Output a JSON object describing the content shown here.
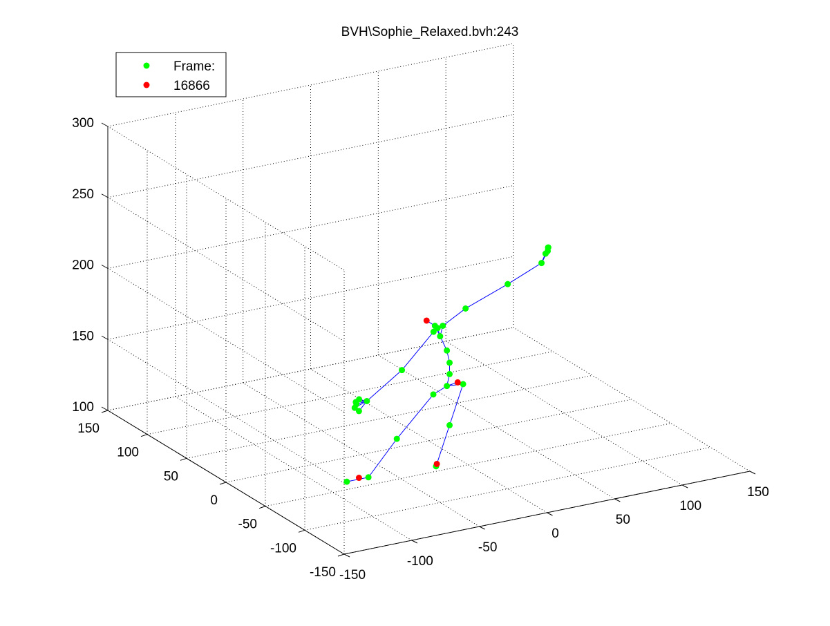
{
  "chart_data": {
    "type": "scatter",
    "title": "BVH\\Sophie_Relaxed.bvh:243",
    "legend": {
      "placement": "top-left",
      "entries": [
        {
          "label": "Frame:",
          "color": "#00ff00"
        },
        {
          "label": "16866",
          "color": "#ff0000"
        }
      ]
    },
    "axes": {
      "x": {
        "ticks": [
          "-150",
          "-100",
          "-50",
          "0",
          "50",
          "100",
          "150"
        ],
        "lim": [
          -150,
          150
        ]
      },
      "y": {
        "ticks": [
          "-150",
          "-100",
          "-50",
          "0",
          "50",
          "100",
          "150"
        ],
        "lim": [
          -150,
          150
        ]
      },
      "z": {
        "ticks": [
          "100",
          "150",
          "200",
          "250",
          "300"
        ],
        "lim": [
          100,
          300
        ]
      },
      "grid": true
    },
    "colors": {
      "joint": "#00ff00",
      "end_site": "#ff0000",
      "bone": "#0000ff"
    },
    "joints": [
      {
        "id": "hips",
        "x": 25,
        "y": 20,
        "z": 127,
        "end": false
      },
      {
        "id": "spine",
        "x": 27,
        "y": 20,
        "z": 135,
        "end": false
      },
      {
        "id": "spine1",
        "x": 27,
        "y": 20,
        "z": 143,
        "end": false
      },
      {
        "id": "spine2",
        "x": 25,
        "y": 20,
        "z": 152,
        "end": false
      },
      {
        "id": "neck",
        "x": 20,
        "y": 20,
        "z": 163,
        "end": false
      },
      {
        "id": "head",
        "x": 15,
        "y": 18,
        "z": 172,
        "end": false
      },
      {
        "id": "head_end",
        "x": 10,
        "y": 20,
        "z": 176,
        "end": true
      },
      {
        "id": "l_clavicle",
        "x": 17,
        "y": 18,
        "z": 170,
        "end": false
      },
      {
        "id": "l_upperarm",
        "x": 14,
        "y": 18,
        "z": 168,
        "end": false
      },
      {
        "id": "l_forearm",
        "x": -10,
        "y": 17,
        "z": 146,
        "end": false
      },
      {
        "id": "l_hand",
        "x": -33,
        "y": 22,
        "z": 127,
        "end": false
      },
      {
        "id": "l_finger_a",
        "x": -40,
        "y": 24,
        "z": 127,
        "end": false
      },
      {
        "id": "l_finger_b",
        "x": -42,
        "y": 22,
        "z": 124,
        "end": false
      },
      {
        "id": "l_finger_c",
        "x": -39,
        "y": 25,
        "z": 125,
        "end": false
      },
      {
        "id": "l_finger_d",
        "x": -40,
        "y": 20,
        "z": 122,
        "end": false
      },
      {
        "id": "l_finger_e",
        "x": -37,
        "y": 25,
        "z": 128,
        "end": false
      },
      {
        "id": "r_clavicle",
        "x": 22,
        "y": 20,
        "z": 170,
        "end": false
      },
      {
        "id": "r_upperarm",
        "x": 40,
        "y": 22,
        "z": 178,
        "end": false
      },
      {
        "id": "r_forearm",
        "x": 70,
        "y": 20,
        "z": 190,
        "end": false
      },
      {
        "id": "r_hand",
        "x": 95,
        "y": 20,
        "z": 200,
        "end": false
      },
      {
        "id": "r_finger_a",
        "x": 98,
        "y": 20,
        "z": 206,
        "end": false
      },
      {
        "id": "r_finger_b",
        "x": 100,
        "y": 20,
        "z": 210,
        "end": false
      },
      {
        "id": "r_finger_c",
        "x": 101,
        "y": 22,
        "z": 209,
        "end": false
      },
      {
        "id": "r_finger_d",
        "x": 99,
        "y": 19,
        "z": 208,
        "end": false
      },
      {
        "id": "l_upleg",
        "x": 15,
        "y": 20,
        "z": 123,
        "end": false
      },
      {
        "id": "l_leg",
        "x": -12,
        "y": 20,
        "z": 97,
        "end": false
      },
      {
        "id": "l_foot",
        "x": -33,
        "y": 20,
        "z": 74,
        "end": false
      },
      {
        "id": "l_toe",
        "x": -49,
        "y": 20,
        "z": 74,
        "end": false
      },
      {
        "id": "l_toe_end",
        "x": -40,
        "y": 20,
        "z": 75,
        "end": true
      },
      {
        "id": "r_upleg",
        "x": 37,
        "y": 20,
        "z": 126,
        "end": false
      },
      {
        "id": "r_leg",
        "x": 27,
        "y": 20,
        "z": 99,
        "end": false
      },
      {
        "id": "r_foot",
        "x": 17,
        "y": 20,
        "z": 72,
        "end": false
      },
      {
        "id": "r_toe_end",
        "x": 17,
        "y": 19,
        "z": 74,
        "end": true
      },
      {
        "id": "spine_end",
        "x": 33,
        "y": 20,
        "z": 128,
        "end": true
      }
    ],
    "bones": [
      [
        "hips",
        "spine"
      ],
      [
        "spine",
        "spine1"
      ],
      [
        "spine1",
        "spine2"
      ],
      [
        "spine2",
        "neck"
      ],
      [
        "neck",
        "head"
      ],
      [
        "head",
        "head_end"
      ],
      [
        "neck",
        "l_clavicle"
      ],
      [
        "l_clavicle",
        "l_upperarm"
      ],
      [
        "l_upperarm",
        "l_forearm"
      ],
      [
        "l_forearm",
        "l_hand"
      ],
      [
        "l_hand",
        "l_finger_a"
      ],
      [
        "l_hand",
        "l_finger_b"
      ],
      [
        "l_hand",
        "l_finger_c"
      ],
      [
        "l_hand",
        "l_finger_d"
      ],
      [
        "l_hand",
        "l_finger_e"
      ],
      [
        "neck",
        "r_clavicle"
      ],
      [
        "r_clavicle",
        "r_upperarm"
      ],
      [
        "r_upperarm",
        "r_forearm"
      ],
      [
        "r_forearm",
        "r_hand"
      ],
      [
        "r_hand",
        "r_finger_a"
      ],
      [
        "r_hand",
        "r_finger_b"
      ],
      [
        "r_hand",
        "r_finger_c"
      ],
      [
        "r_hand",
        "r_finger_d"
      ],
      [
        "hips",
        "l_upleg"
      ],
      [
        "l_upleg",
        "l_leg"
      ],
      [
        "l_leg",
        "l_foot"
      ],
      [
        "l_foot",
        "l_toe"
      ],
      [
        "hips",
        "r_upleg"
      ],
      [
        "r_upleg",
        "r_leg"
      ],
      [
        "r_leg",
        "r_foot"
      ],
      [
        "r_foot",
        "r_toe_end"
      ],
      [
        "hips",
        "spine_end"
      ]
    ]
  }
}
